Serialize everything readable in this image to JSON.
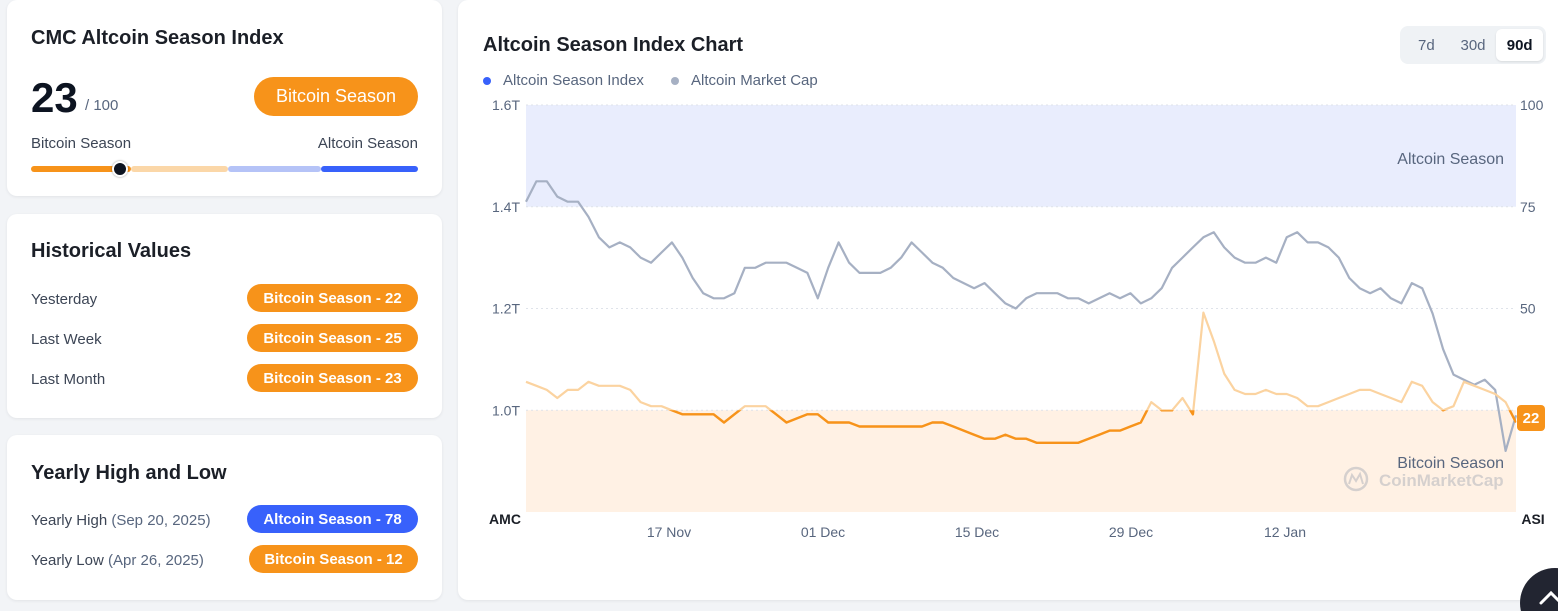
{
  "index_card": {
    "title": "CMC Altcoin Season Index",
    "value": "23",
    "max": "/ 100",
    "season_label": "Bitcoin Season",
    "scale_left": "Bitcoin Season",
    "scale_right": "Altcoin Season",
    "index_value": 23,
    "colors": {
      "orange": "#f7931a",
      "light_orange": "#fbd7a8",
      "light_blue": "#b5c3f7",
      "blue": "#3861fb"
    }
  },
  "historical": {
    "title": "Historical Values",
    "rows": [
      {
        "label": "Yesterday",
        "value": "Bitcoin Season - 22"
      },
      {
        "label": "Last Week",
        "value": "Bitcoin Season - 25"
      },
      {
        "label": "Last Month",
        "value": "Bitcoin Season - 23"
      }
    ]
  },
  "yearly": {
    "title": "Yearly High and Low",
    "high_label": "Yearly High",
    "high_date": "(Sep 20, 2025)",
    "high_value": "Altcoin Season - 78",
    "low_label": "Yearly Low",
    "low_date": "(Apr 26, 2025)",
    "low_value": "Bitcoin Season - 12"
  },
  "chart_card": {
    "title": "Altcoin Season Index Chart",
    "ranges": [
      "7d",
      "30d",
      "90d"
    ],
    "active_range": "90d",
    "legend": [
      {
        "label": "Altcoin Season Index",
        "color": "#3861fb"
      },
      {
        "label": "Altcoin Market Cap",
        "color": "#a6b0c3"
      }
    ],
    "zone_labels": {
      "top": "Altcoin Season",
      "bottom": "Bitcoin Season"
    },
    "watermark": "CoinMarketCap",
    "current_badge": "22"
  },
  "chart_data": {
    "type": "line",
    "x_ticks": [
      "17 Nov",
      "01 Dec",
      "15 Dec",
      "29 Dec",
      "12 Jan"
    ],
    "x_tick_days": [
      13,
      27,
      41,
      55,
      69
    ],
    "x_span_days": 90,
    "left_axis": {
      "label": "AMC",
      "ticks": [
        "1.6T",
        "1.4T",
        "1.2T",
        "1.0T"
      ],
      "tick_values": [
        1.6,
        1.4,
        1.2,
        1.0
      ],
      "range": [
        0.8,
        1.6
      ],
      "unit": "T"
    },
    "right_axis": {
      "label": "ASI",
      "ticks": [
        "100",
        "75",
        "50"
      ],
      "tick_values": [
        100,
        75,
        50
      ],
      "range": [
        0,
        100
      ]
    },
    "zones": {
      "altcoin_season_min": 75,
      "bitcoin_season_max": 25
    },
    "series": [
      {
        "name": "Altcoin Market Cap",
        "axis": "left",
        "values": [
          1.41,
          1.45,
          1.45,
          1.42,
          1.41,
          1.41,
          1.38,
          1.34,
          1.32,
          1.33,
          1.32,
          1.3,
          1.29,
          1.31,
          1.33,
          1.3,
          1.26,
          1.23,
          1.22,
          1.22,
          1.23,
          1.28,
          1.28,
          1.29,
          1.29,
          1.29,
          1.28,
          1.27,
          1.22,
          1.28,
          1.33,
          1.29,
          1.27,
          1.27,
          1.27,
          1.28,
          1.3,
          1.33,
          1.31,
          1.29,
          1.28,
          1.26,
          1.25,
          1.24,
          1.25,
          1.23,
          1.21,
          1.2,
          1.22,
          1.23,
          1.23,
          1.23,
          1.22,
          1.22,
          1.21,
          1.22,
          1.23,
          1.22,
          1.23,
          1.21,
          1.22,
          1.24,
          1.28,
          1.3,
          1.32,
          1.34,
          1.35,
          1.32,
          1.3,
          1.29,
          1.29,
          1.3,
          1.29,
          1.34,
          1.35,
          1.33,
          1.33,
          1.32,
          1.3,
          1.26,
          1.24,
          1.23,
          1.24,
          1.22,
          1.21,
          1.25,
          1.24,
          1.19,
          1.12,
          1.07,
          1.06,
          1.05,
          1.06,
          1.04,
          0.92,
          0.99
        ]
      },
      {
        "name": "Altcoin Season Index",
        "axis": "right",
        "values": [
          32,
          31,
          30,
          28,
          30,
          30,
          32,
          31,
          31,
          31,
          30,
          27,
          26,
          26,
          25,
          24,
          24,
          24,
          24,
          22,
          24,
          26,
          26,
          26,
          24,
          22,
          23,
          24,
          24,
          22,
          22,
          22,
          21,
          21,
          21,
          21,
          21,
          21,
          21,
          22,
          22,
          21,
          20,
          19,
          18,
          18,
          19,
          18,
          18,
          17,
          17,
          17,
          17,
          17,
          18,
          19,
          20,
          20,
          21,
          22,
          27,
          25,
          25,
          28,
          24,
          49,
          42,
          34,
          30,
          29,
          29,
          30,
          29,
          29,
          28,
          26,
          26,
          27,
          28,
          29,
          30,
          30,
          29,
          28,
          27,
          32,
          31,
          27,
          25,
          26,
          32,
          31,
          30,
          29,
          27,
          22
        ]
      }
    ]
  }
}
